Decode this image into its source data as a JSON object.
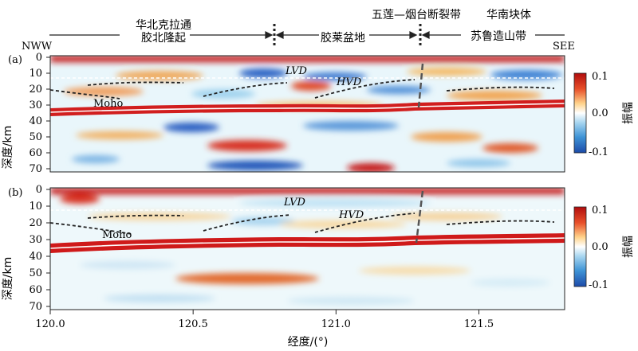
{
  "chart_data": {
    "type": "heatmap",
    "top_annotations": {
      "left_end": "NWW",
      "right_end": "SEE",
      "region_1_line1": "华北克拉通",
      "region_1_line2": "胶北隆起",
      "region_2": "胶莱盆地",
      "region_3_line1": "五莲—烟台断裂带",
      "region_4_line1": "华南块体",
      "region_4_line2": "苏鲁造山带"
    },
    "panels": [
      {
        "label": "(a)",
        "annotations": {
          "lvd": "LVD",
          "hvd": "HVD",
          "moho": "Moho"
        },
        "colorbar": {
          "max_label": "0.1",
          "mid_label": "0.0",
          "min_label": "-0.1",
          "title": "振幅"
        }
      },
      {
        "label": "(b)",
        "annotations": {
          "lvd": "LVD",
          "hvd": "HVD",
          "moho": "Moho"
        },
        "colorbar": {
          "max_label": "0.1",
          "mid_label": "0.0",
          "min_label": "-0.1",
          "title": "振幅"
        }
      }
    ],
    "xlabel": "经度/(°)",
    "ylabel": "深度/km",
    "x_ticks": [
      "120.0",
      "120.5",
      "121.0",
      "121.5"
    ],
    "y_ticks": [
      "0",
      "10",
      "20",
      "30",
      "40",
      "50",
      "60",
      "70"
    ],
    "xlim": [
      120.0,
      121.8
    ],
    "ylim": [
      0,
      70
    ],
    "moho_depth_km": [
      32,
      31,
      31,
      31,
      31,
      30,
      30
    ],
    "moho_longitudes": [
      120.0,
      120.3,
      120.6,
      120.9,
      121.2,
      121.5,
      121.8
    ],
    "fault_longitude": 121.19,
    "boundary_longitude": 120.78,
    "colorscale": {
      "min": -0.1,
      "max": 0.1,
      "colors": [
        "#2b5fbf",
        "#ffffff",
        "#cc1a1a"
      ]
    }
  }
}
